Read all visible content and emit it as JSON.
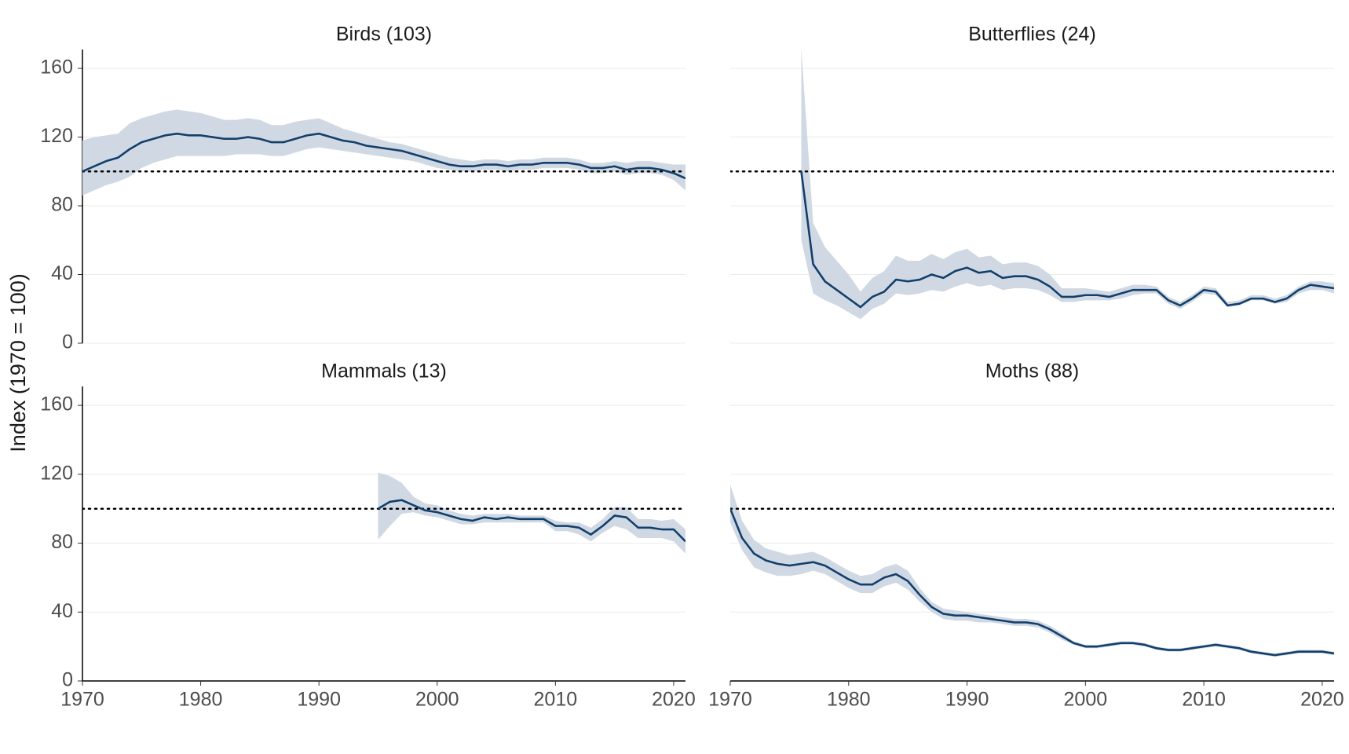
{
  "ylabel": "Index (1970 = 100)",
  "chart_data": [
    {
      "type": "line",
      "title": "Birds (103)",
      "line_color": "#123f6b",
      "band_color": "#d0d9e3",
      "reference": 100,
      "xlim": [
        1970,
        2021
      ],
      "ylim": [
        0,
        171
      ],
      "yticks": [
        0,
        40,
        80,
        120,
        160
      ],
      "y_axis": true,
      "x_axis": false,
      "x": [
        1970,
        1971,
        1972,
        1973,
        1974,
        1975,
        1976,
        1977,
        1978,
        1979,
        1980,
        1981,
        1982,
        1983,
        1984,
        1985,
        1986,
        1987,
        1988,
        1989,
        1990,
        1991,
        1992,
        1993,
        1994,
        1995,
        1996,
        1997,
        1998,
        1999,
        2000,
        2001,
        2002,
        2003,
        2004,
        2005,
        2006,
        2007,
        2008,
        2009,
        2010,
        2011,
        2012,
        2013,
        2014,
        2015,
        2016,
        2017,
        2018,
        2019,
        2020,
        2021
      ],
      "values": [
        100,
        103,
        106,
        108,
        113,
        117,
        119,
        121,
        122,
        121,
        121,
        120,
        119,
        119,
        120,
        119,
        117,
        117,
        119,
        121,
        122,
        120,
        118,
        117,
        115,
        114,
        113,
        112,
        110,
        108,
        106,
        104,
        103,
        103,
        104,
        104,
        103,
        104,
        104,
        105,
        105,
        105,
        104,
        102,
        102,
        103,
        101,
        102,
        102,
        101,
        99,
        96
      ],
      "lower": [
        86,
        89,
        92,
        94,
        97,
        102,
        105,
        107,
        109,
        109,
        109,
        109,
        109,
        110,
        110,
        110,
        109,
        109,
        111,
        113,
        114,
        113,
        112,
        111,
        110,
        109,
        108,
        107,
        106,
        104,
        102,
        101,
        100,
        100,
        101,
        101,
        100,
        101,
        101,
        102,
        102,
        102,
        101,
        99,
        99,
        100,
        98,
        99,
        99,
        98,
        95,
        89
      ],
      "upper": [
        118,
        120,
        121,
        122,
        128,
        131,
        133,
        135,
        136,
        135,
        134,
        132,
        130,
        130,
        131,
        130,
        127,
        127,
        129,
        130,
        131,
        128,
        125,
        123,
        121,
        119,
        117,
        116,
        114,
        112,
        110,
        108,
        107,
        106,
        107,
        107,
        106,
        107,
        107,
        108,
        108,
        108,
        107,
        105,
        105,
        106,
        105,
        106,
        106,
        105,
        104,
        104
      ]
    },
    {
      "type": "line",
      "title": "Butterflies (24)",
      "line_color": "#123f6b",
      "band_color": "#d0d9e3",
      "reference": 100,
      "xlim": [
        1970,
        2021
      ],
      "ylim": [
        0,
        171
      ],
      "yticks": [
        0,
        40,
        80,
        120,
        160
      ],
      "y_axis": false,
      "x_axis": false,
      "x": [
        1976,
        1977,
        1978,
        1979,
        1980,
        1981,
        1982,
        1983,
        1984,
        1985,
        1986,
        1987,
        1988,
        1989,
        1990,
        1991,
        1992,
        1993,
        1994,
        1995,
        1996,
        1997,
        1998,
        1999,
        2000,
        2001,
        2002,
        2003,
        2004,
        2005,
        2006,
        2007,
        2008,
        2009,
        2010,
        2011,
        2012,
        2013,
        2014,
        2015,
        2016,
        2017,
        2018,
        2019,
        2020,
        2021
      ],
      "values": [
        100,
        46,
        36,
        31,
        26,
        21,
        27,
        30,
        37,
        36,
        37,
        40,
        38,
        42,
        44,
        41,
        42,
        38,
        39,
        39,
        37,
        33,
        27,
        27,
        28,
        28,
        27,
        29,
        31,
        31,
        31,
        25,
        22,
        26,
        31,
        30,
        22,
        23,
        26,
        26,
        24,
        26,
        31,
        34,
        33,
        32
      ],
      "lower": [
        60,
        29,
        25,
        22,
        18,
        14,
        20,
        23,
        29,
        28,
        29,
        31,
        30,
        33,
        35,
        33,
        34,
        31,
        32,
        32,
        31,
        28,
        24,
        24,
        25,
        25,
        25,
        26,
        28,
        29,
        29,
        23,
        20,
        24,
        29,
        28,
        21,
        22,
        25,
        25,
        23,
        24,
        29,
        31,
        31,
        29
      ],
      "upper": [
        172,
        70,
        56,
        48,
        40,
        30,
        38,
        42,
        51,
        48,
        48,
        52,
        49,
        53,
        55,
        50,
        51,
        46,
        47,
        47,
        45,
        40,
        32,
        32,
        32,
        31,
        30,
        32,
        34,
        34,
        33,
        27,
        24,
        28,
        33,
        32,
        24,
        25,
        28,
        28,
        26,
        28,
        33,
        36,
        36,
        35
      ]
    },
    {
      "type": "line",
      "title": "Mammals (13)",
      "line_color": "#123f6b",
      "band_color": "#d0d9e3",
      "reference": 100,
      "xlim": [
        1970,
        2021
      ],
      "ylim": [
        0,
        171
      ],
      "yticks": [
        0,
        40,
        80,
        120,
        160
      ],
      "xticks": [
        1970,
        1980,
        1990,
        2000,
        2010,
        2020
      ],
      "y_axis": true,
      "x_axis": true,
      "x": [
        1995,
        1996,
        1997,
        1998,
        1999,
        2000,
        2001,
        2002,
        2003,
        2004,
        2005,
        2006,
        2007,
        2008,
        2009,
        2010,
        2011,
        2012,
        2013,
        2014,
        2015,
        2016,
        2017,
        2018,
        2019,
        2020,
        2021
      ],
      "values": [
        100,
        104,
        105,
        102,
        99,
        98,
        96,
        94,
        93,
        95,
        94,
        95,
        94,
        94,
        94,
        90,
        90,
        89,
        85,
        90,
        96,
        95,
        89,
        89,
        88,
        88,
        81
      ],
      "lower": [
        82,
        90,
        97,
        98,
        96,
        95,
        93,
        91,
        91,
        92,
        92,
        92,
        92,
        92,
        92,
        87,
        87,
        85,
        81,
        86,
        90,
        88,
        83,
        83,
        83,
        81,
        74
      ],
      "upper": [
        121,
        119,
        115,
        107,
        103,
        102,
        99,
        97,
        96,
        97,
        97,
        97,
        96,
        96,
        96,
        93,
        92,
        92,
        89,
        94,
        101,
        101,
        94,
        94,
        93,
        94,
        88
      ]
    },
    {
      "type": "line",
      "title": "Moths (88)",
      "line_color": "#123f6b",
      "band_color": "#d0d9e3",
      "reference": 100,
      "xlim": [
        1970,
        2021
      ],
      "ylim": [
        0,
        171
      ],
      "yticks": [
        0,
        40,
        80,
        120,
        160
      ],
      "xticks": [
        1970,
        1980,
        1990,
        2000,
        2010,
        2020
      ],
      "y_axis": false,
      "x_axis": true,
      "x": [
        1970,
        1971,
        1972,
        1973,
        1974,
        1975,
        1976,
        1977,
        1978,
        1979,
        1980,
        1981,
        1982,
        1983,
        1984,
        1985,
        1986,
        1987,
        1988,
        1989,
        1990,
        1991,
        1992,
        1993,
        1994,
        1995,
        1996,
        1997,
        1998,
        1999,
        2000,
        2001,
        2002,
        2003,
        2004,
        2005,
        2006,
        2007,
        2008,
        2009,
        2010,
        2011,
        2012,
        2013,
        2014,
        2015,
        2016,
        2017,
        2018,
        2019,
        2020,
        2021
      ],
      "values": [
        100,
        83,
        74,
        70,
        68,
        67,
        68,
        69,
        67,
        63,
        59,
        56,
        56,
        60,
        62,
        58,
        50,
        43,
        39,
        38,
        38,
        37,
        36,
        35,
        34,
        34,
        33,
        30,
        26,
        22,
        20,
        20,
        21,
        22,
        22,
        21,
        19,
        18,
        18,
        19,
        20,
        21,
        20,
        19,
        17,
        16,
        15,
        16,
        17,
        17,
        17,
        16
      ],
      "lower": [
        92,
        76,
        66,
        63,
        61,
        61,
        62,
        64,
        62,
        58,
        54,
        51,
        51,
        55,
        57,
        53,
        46,
        40,
        36,
        35,
        35,
        34,
        34,
        33,
        32,
        32,
        31,
        28,
        24,
        21,
        19,
        19,
        20,
        21,
        21,
        20,
        18,
        17,
        17,
        18,
        19,
        20,
        19,
        18,
        16,
        15,
        14,
        15,
        16,
        16,
        16,
        15
      ],
      "upper": [
        114,
        93,
        82,
        77,
        75,
        73,
        74,
        75,
        72,
        68,
        64,
        61,
        62,
        66,
        68,
        64,
        54,
        46,
        42,
        41,
        40,
        39,
        38,
        37,
        36,
        36,
        35,
        32,
        28,
        23,
        21,
        21,
        22,
        23,
        23,
        22,
        20,
        19,
        19,
        20,
        21,
        22,
        21,
        20,
        18,
        17,
        16,
        17,
        18,
        18,
        18,
        17
      ]
    }
  ]
}
